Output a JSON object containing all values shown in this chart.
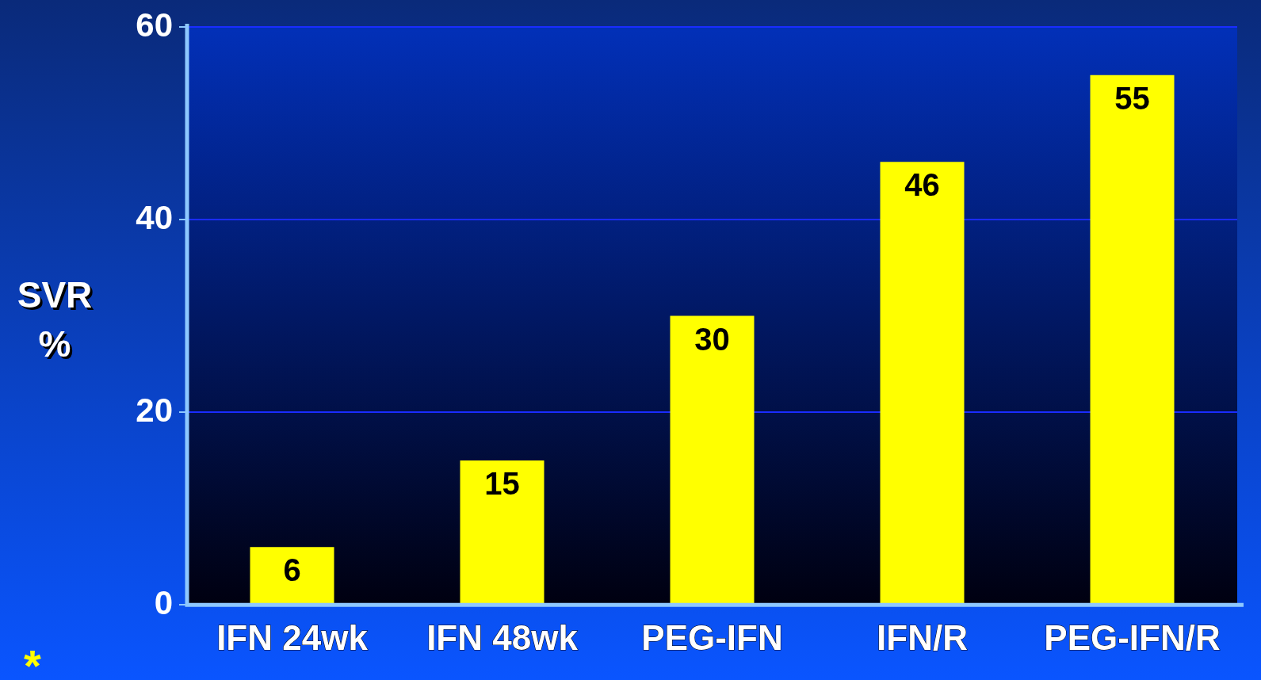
{
  "chart_data": {
    "type": "bar",
    "ylabel": "SVR\n%",
    "categories": [
      "IFN 24wk",
      "IFN 48wk",
      "PEG-IFN",
      "IFN/R",
      "PEG-IFN/R"
    ],
    "values": [
      6,
      15,
      30,
      46,
      55
    ],
    "color": "#ffff00",
    "ylim": [
      0,
      60
    ],
    "yticks": [
      0,
      20,
      40,
      60
    ],
    "grid": "y",
    "data_labels": true,
    "annotations": [
      "*"
    ]
  }
}
